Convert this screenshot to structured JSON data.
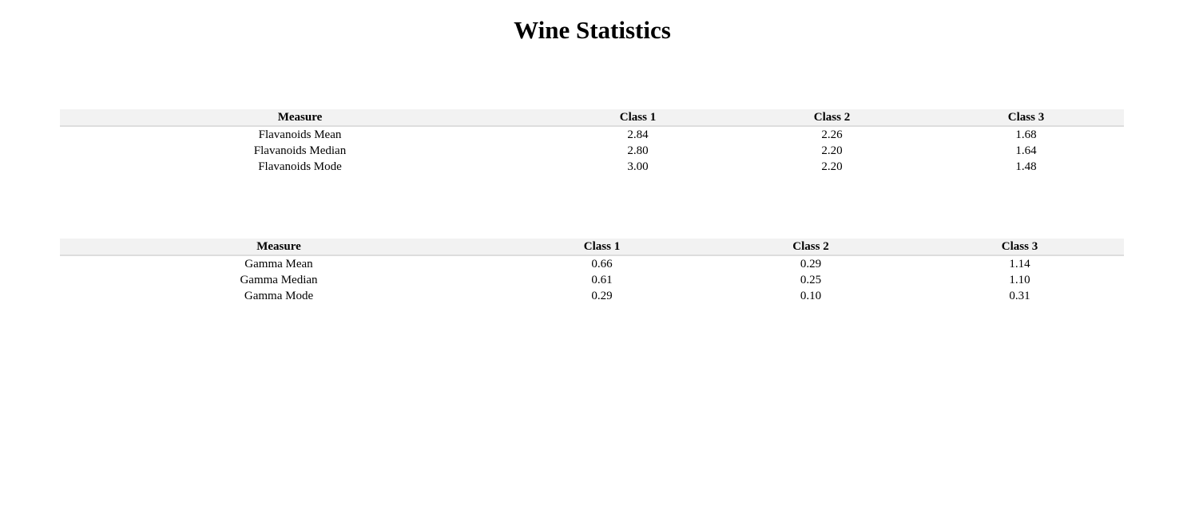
{
  "page": {
    "title": "Wine Statistics"
  },
  "flavanoids_table": {
    "headers": [
      "Measure",
      "Class 1",
      "Class 2",
      "Class 3"
    ],
    "rows": [
      [
        "Flavanoids Mean",
        "2.84",
        "2.26",
        "1.68"
      ],
      [
        "Flavanoids Median",
        "2.80",
        "2.20",
        "1.64"
      ],
      [
        "Flavanoids Mode",
        "3.00",
        "2.20",
        "1.48"
      ]
    ]
  },
  "gamma_table": {
    "headers": [
      "Measure",
      "Class 1",
      "Class 2",
      "Class 3"
    ],
    "rows": [
      [
        "Gamma Mean",
        "0.66",
        "0.29",
        "1.14"
      ],
      [
        "Gamma Median",
        "0.61",
        "0.25",
        "1.10"
      ],
      [
        "Gamma Mode",
        "0.29",
        "0.10",
        "0.31"
      ]
    ]
  },
  "colors": {
    "header_background": "#f2f2f2",
    "header_border": "#dddddd",
    "text": "#000000",
    "page_background": "#ffffff"
  }
}
